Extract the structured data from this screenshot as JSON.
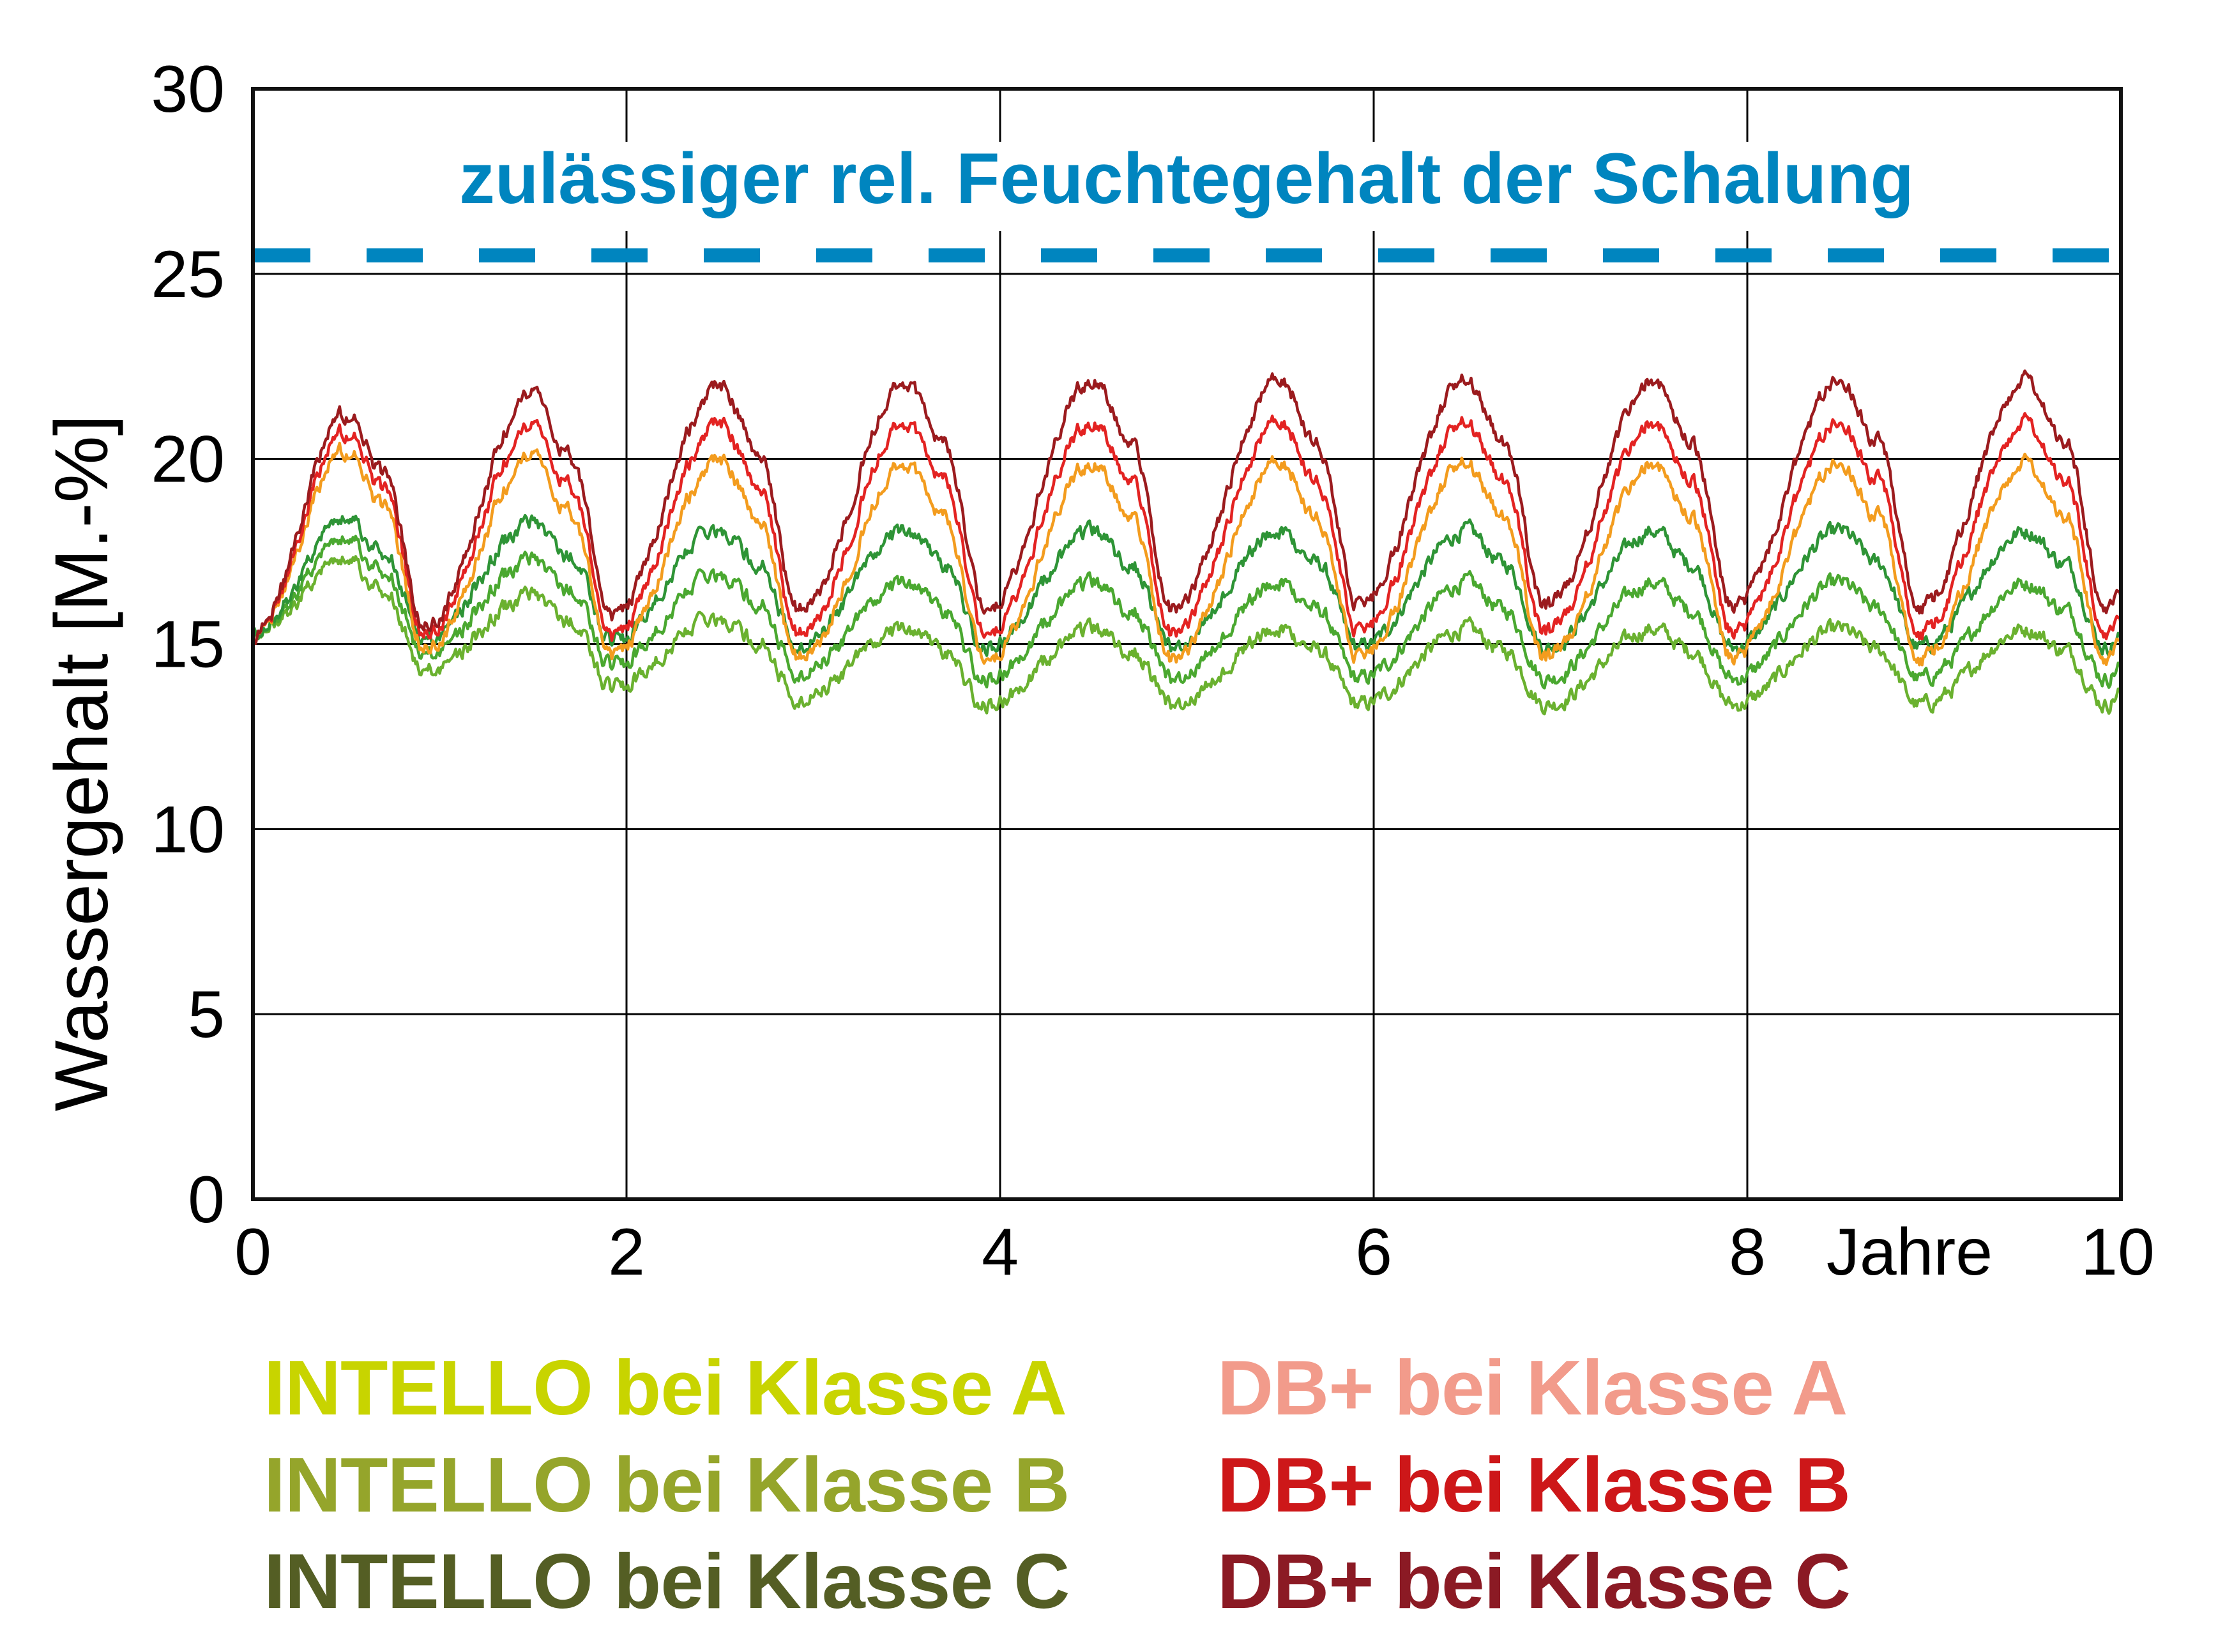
{
  "chart_data": {
    "type": "line",
    "title": "",
    "xlabel": "Jahre",
    "ylabel": "Wassergehalt [M.-%]",
    "xlim": [
      0,
      10
    ],
    "ylim": [
      0,
      30
    ],
    "x_ticks": [
      "0",
      "2",
      "4",
      "6",
      "8",
      "10"
    ],
    "y_ticks": [
      "0",
      "5",
      "10",
      "15",
      "20",
      "25",
      "30"
    ],
    "grid": true,
    "legend_position": "bottom",
    "annotations": [
      {
        "text": "zulässiger rel. Feuchtegehalt der Schalung",
        "type": "horizontal-dashed-line",
        "y": 25.5,
        "color": "#0085bf"
      }
    ],
    "x_peak_phase": 0.5,
    "x_trough_phase": 0.92,
    "series": [
      {
        "name": "DB+ bei Klasse C",
        "legend_color": "#8b1a24",
        "line_color": "#9b1b1e",
        "start": 15.2,
        "end": 16.3,
        "yearly_peaks": [
          21.2,
          21.7,
          21.95,
          22.1,
          22.15,
          22.15,
          22.15,
          22.15,
          22.15,
          22.15
        ],
        "yearly_troughs": [
          15.5,
          15.75,
          15.9,
          15.95,
          15.95,
          16.0,
          16.0,
          16.0,
          16.0,
          16.0
        ]
      },
      {
        "name": "DB+ bei Klasse B",
        "legend_color": "#cd1719",
        "line_color": "#e32322",
        "start": 15.2,
        "end": 15.6,
        "yearly_peaks": [
          20.7,
          20.8,
          20.95,
          21.0,
          21.0,
          21.0,
          21.0,
          21.0,
          21.0,
          21.0
        ],
        "yearly_troughs": [
          15.3,
          15.2,
          15.25,
          15.3,
          15.3,
          15.3,
          15.3,
          15.3,
          15.3,
          15.3
        ]
      },
      {
        "name": "DB+ bei Klasse A",
        "legend_color": "#f29b8b",
        "line_color": "#f39c1e",
        "start": 15.2,
        "end": 15.0,
        "yearly_peaks": [
          20.2,
          20.0,
          19.95,
          19.9,
          19.9,
          19.9,
          19.9,
          19.9,
          19.9,
          19.9
        ],
        "yearly_troughs": [
          14.9,
          14.7,
          14.6,
          14.6,
          14.6,
          14.6,
          14.6,
          14.6,
          14.6,
          14.6
        ]
      },
      {
        "name": "INTELLO bei Klasse C",
        "legend_color": "#545e24",
        "line_color": "#2e9436",
        "start": 15.2,
        "end": 15.2,
        "yearly_peaks": [
          18.4,
          18.25,
          18.1,
          18.05,
          18.05,
          18.05,
          18.05,
          18.05,
          18.05,
          18.05
        ],
        "yearly_troughs": [
          15.15,
          15.05,
          14.95,
          14.9,
          14.9,
          14.9,
          14.9,
          14.9,
          14.9,
          14.9
        ]
      },
      {
        "name": "INTELLO bei Klasse B",
        "legend_color": "#95a52b",
        "line_color": "#4aa830",
        "start": 15.2,
        "end": 14.4,
        "yearly_peaks": [
          17.85,
          17.25,
          16.9,
          16.65,
          16.65,
          16.65,
          16.65,
          16.65,
          16.65,
          16.65
        ],
        "yearly_troughs": [
          14.75,
          14.4,
          14.2,
          14.05,
          14.05,
          14.05,
          14.05,
          14.05,
          14.05,
          14.05
        ]
      },
      {
        "name": "INTELLO bei Klasse A",
        "legend_color": "#c8d400",
        "line_color": "#6ab12f",
        "start": 15.2,
        "end": 13.7,
        "yearly_peaks": [
          17.3,
          16.3,
          15.7,
          15.4,
          15.4,
          15.4,
          15.4,
          15.4,
          15.4,
          15.4
        ],
        "yearly_troughs": [
          14.3,
          13.8,
          13.5,
          13.35,
          13.35,
          13.35,
          13.35,
          13.35,
          13.35,
          13.35
        ]
      }
    ]
  },
  "axes": {
    "y_title": "Wassergehalt [M.-%]",
    "x_unit_label": "Jahre"
  },
  "threshold": {
    "label": "zulässiger rel. Feuchtegehalt der Schalung",
    "color": "#0085bf"
  },
  "legend": {
    "left": [
      {
        "label": "INTELLO bei Klasse A",
        "color": "#c8d400"
      },
      {
        "label": "INTELLO bei Klasse B",
        "color": "#95a52b"
      },
      {
        "label": "INTELLO bei Klasse C",
        "color": "#545e24"
      }
    ],
    "right": [
      {
        "label": "DB+ bei Klasse A",
        "color": "#f29b8b"
      },
      {
        "label": "DB+ bei Klasse B",
        "color": "#cd1719"
      },
      {
        "label": "DB+ bei Klasse C",
        "color": "#8b1a24"
      }
    ]
  }
}
